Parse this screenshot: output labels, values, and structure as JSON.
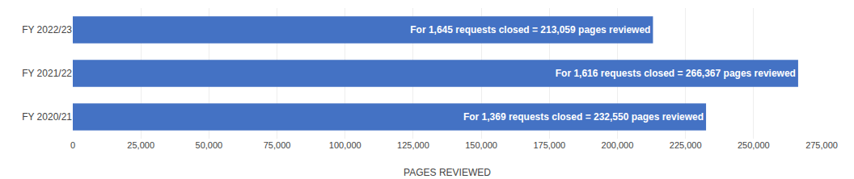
{
  "chart_data": {
    "type": "bar",
    "orientation": "horizontal",
    "categories": [
      "FY 2020/21",
      "FY 2021/22",
      "FY 2022/23"
    ],
    "values": [
      232550,
      266367,
      213059
    ],
    "value_labels": [
      "For 1,369 requests closed = 232,550 pages reviewed",
      "For 1,616 requests closed = 266,367 pages reviewed",
      "For 1,645 requests closed = 213,059 pages reviewed"
    ],
    "data_labels": true,
    "color": "#4472C4",
    "xlabel": "PAGES REVIEWED",
    "xlim": [
      0,
      275000
    ],
    "xticks": [
      0,
      {
        "value": 25000,
        "label": "25,000"
      },
      {
        "value": 50000,
        "label": "50,000"
      },
      {
        "value": 75000,
        "label": "75,000"
      },
      {
        "value": 100000,
        "label": "100,000"
      },
      {
        "value": 125000,
        "label": "125,000"
      },
      {
        "value": 150000,
        "label": "150,000"
      },
      {
        "value": 175000,
        "label": "175,000"
      },
      {
        "value": 200000,
        "label": "200,000"
      },
      {
        "value": 225000,
        "label": "225,000"
      },
      {
        "value": 250000,
        "label": "250,000"
      },
      {
        "value": 275000,
        "label": "275,000"
      }
    ],
    "grid": true
  }
}
